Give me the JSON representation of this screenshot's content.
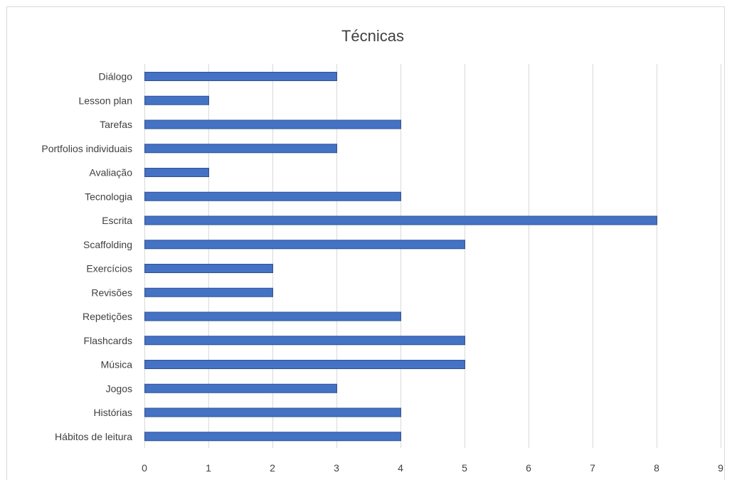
{
  "chart_data": {
    "type": "bar",
    "orientation": "horizontal",
    "title": "Técnicas",
    "categories": [
      "Diálogo",
      "Lesson plan",
      "Tarefas",
      "Portfolios individuais",
      "Avaliação",
      "Tecnologia",
      "Escrita",
      "Scaffolding",
      "Exercícios",
      "Revisões",
      "Repetições",
      "Flashcards",
      "Música",
      "Jogos",
      "Histórias",
      "Hábitos de leitura"
    ],
    "values": [
      3,
      1,
      4,
      3,
      1,
      4,
      8,
      5,
      2,
      2,
      4,
      5,
      5,
      3,
      4,
      4
    ],
    "xlim": [
      0,
      9
    ],
    "x_ticks": [
      "0",
      "1",
      "2",
      "3",
      "4",
      "5",
      "6",
      "7",
      "8",
      "9"
    ],
    "xlabel": "",
    "ylabel": "",
    "grid": "vertical",
    "legend": "none",
    "bar_color": "#4472c4",
    "bar_border_color": "#2f528f"
  }
}
